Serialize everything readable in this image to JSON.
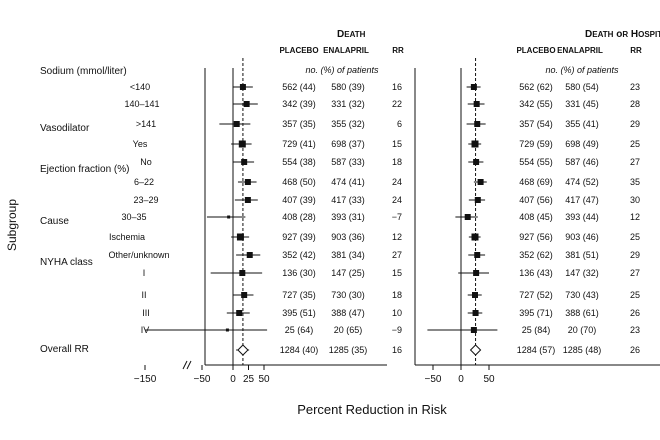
{
  "chart_data": {
    "type": "forest",
    "y_axis_title": "Subgroup",
    "x_axis_title": "Percent Reduction in Risk",
    "patients_note": "no. (%) of patients",
    "column_labels": {
      "placebo": "PLACEBO",
      "enalapril": "ENALAPRIL",
      "rr": "RR"
    },
    "group_headers": [
      {
        "label": "Sodium (mmol/liter)",
        "row": 0
      },
      {
        "label": "Vasodilator",
        "row": 3
      },
      {
        "label": "Ejection fraction (%)",
        "row": 5
      },
      {
        "label": "Cause",
        "row": 8
      },
      {
        "label": "NYHA class",
        "row": 10
      }
    ],
    "rows": [
      {
        "label": "<140"
      },
      {
        "label": "140–141"
      },
      {
        "label": ">141"
      },
      {
        "label": "Yes"
      },
      {
        "label": "No"
      },
      {
        "label": "6–22"
      },
      {
        "label": "23–29"
      },
      {
        "label": "30–35"
      },
      {
        "label": "Ischemia"
      },
      {
        "label": "Other/unknown"
      },
      {
        "label": "I"
      },
      {
        "label": "II"
      },
      {
        "label": "III"
      },
      {
        "label": "IV"
      },
      {
        "label": "Overall RR",
        "overall": true
      }
    ],
    "panels": [
      {
        "title": "Death",
        "axis": {
          "ticks": [
            "−150",
            "−50",
            "0",
            "25",
            "50"
          ],
          "tick_values": [
            -150,
            -50,
            0,
            25,
            50
          ],
          "reference": 16
        },
        "data": [
          {
            "placebo": "562 (44)",
            "enalapril": "580 (39)",
            "rr": "16",
            "point": 16,
            "low": 0,
            "high": 32
          },
          {
            "placebo": "342 (39)",
            "enalapril": "331 (32)",
            "rr": "22",
            "point": 22,
            "low": 0,
            "high": 40
          },
          {
            "placebo": "357 (35)",
            "enalapril": "355 (32)",
            "rr": "6",
            "point": 6,
            "low": -22,
            "high": 28
          },
          {
            "placebo": "729 (41)",
            "enalapril": "698 (37)",
            "rr": "15",
            "point": 15,
            "low": -3,
            "high": 30
          },
          {
            "placebo": "554 (38)",
            "enalapril": "587 (33)",
            "rr": "18",
            "point": 18,
            "low": 0,
            "high": 34
          },
          {
            "placebo": "468 (50)",
            "enalapril": "474 (41)",
            "rr": "24",
            "point": 24,
            "low": 8,
            "high": 38
          },
          {
            "placebo": "407 (39)",
            "enalapril": "417 (33)",
            "rr": "24",
            "point": 24,
            "low": 3,
            "high": 40
          },
          {
            "placebo": "408 (28)",
            "enalapril": "393 (31)",
            "rr": "−7",
            "point": -7,
            "low": -42,
            "high": 20
          },
          {
            "placebo": "927 (39)",
            "enalapril": "903 (36)",
            "rr": "12",
            "point": 12,
            "low": -3,
            "high": 26
          },
          {
            "placebo": "352 (42)",
            "enalapril": "381 (34)",
            "rr": "27",
            "point": 27,
            "low": 5,
            "high": 44
          },
          {
            "placebo": "136 (30)",
            "enalapril": "147 (25)",
            "rr": "15",
            "point": 15,
            "low": -36,
            "high": 47
          },
          {
            "placebo": "727 (35)",
            "enalapril": "730 (30)",
            "rr": "18",
            "point": 18,
            "low": 0,
            "high": 33
          },
          {
            "placebo": "395 (51)",
            "enalapril": "388 (47)",
            "rr": "10",
            "point": 10,
            "low": -10,
            "high": 27
          },
          {
            "placebo": "25 (64)",
            "enalapril": "20 (65)",
            "rr": "−9",
            "point": -9,
            "low": -150,
            "high": 55
          },
          {
            "placebo": "1284 (40)",
            "enalapril": "1285 (35)",
            "rr": "16",
            "point": 16,
            "low": 5,
            "high": 26
          }
        ]
      },
      {
        "title": "Death or Hospitalization",
        "axis": {
          "ticks": [
            "−50",
            "0",
            "50"
          ],
          "tick_values": [
            -50,
            0,
            50
          ],
          "reference": 26
        },
        "data": [
          {
            "placebo": "562 (62)",
            "enalapril": "580 (54)",
            "rr": "23",
            "point": 23,
            "low": 10,
            "high": 35
          },
          {
            "placebo": "342 (55)",
            "enalapril": "331 (45)",
            "rr": "28",
            "point": 28,
            "low": 12,
            "high": 42
          },
          {
            "placebo": "357 (54)",
            "enalapril": "355 (41)",
            "rr": "29",
            "point": 29,
            "low": 10,
            "high": 44
          },
          {
            "placebo": "729 (59)",
            "enalapril": "698 (49)",
            "rr": "25",
            "point": 25,
            "low": 13,
            "high": 36
          },
          {
            "placebo": "554 (55)",
            "enalapril": "587 (46)",
            "rr": "27",
            "point": 27,
            "low": 13,
            "high": 40
          },
          {
            "placebo": "468 (69)",
            "enalapril": "474 (52)",
            "rr": "35",
            "point": 35,
            "low": 23,
            "high": 46
          },
          {
            "placebo": "407 (56)",
            "enalapril": "417 (47)",
            "rr": "30",
            "point": 30,
            "low": 14,
            "high": 43
          },
          {
            "placebo": "408 (45)",
            "enalapril": "393 (44)",
            "rr": "12",
            "point": 12,
            "low": -10,
            "high": 30
          },
          {
            "placebo": "927 (56)",
            "enalapril": "903 (46)",
            "rr": "25",
            "point": 25,
            "low": 14,
            "high": 35
          },
          {
            "placebo": "352 (62)",
            "enalapril": "381 (51)",
            "rr": "29",
            "point": 29,
            "low": 13,
            "high": 43
          },
          {
            "placebo": "136 (43)",
            "enalapril": "147 (32)",
            "rr": "27",
            "point": 27,
            "low": -5,
            "high": 50
          },
          {
            "placebo": "727 (52)",
            "enalapril": "730 (43)",
            "rr": "25",
            "point": 25,
            "low": 12,
            "high": 37
          },
          {
            "placebo": "395 (71)",
            "enalapril": "388 (61)",
            "rr": "26",
            "point": 26,
            "low": 12,
            "high": 38
          },
          {
            "placebo": "25 (84)",
            "enalapril": "20 (70)",
            "rr": "23",
            "point": 23,
            "low": -60,
            "high": 65
          },
          {
            "placebo": "1284 (57)",
            "enalapril": "1285 (48)",
            "rr": "26",
            "point": 26,
            "low": 18,
            "high": 34
          }
        ]
      }
    ]
  }
}
